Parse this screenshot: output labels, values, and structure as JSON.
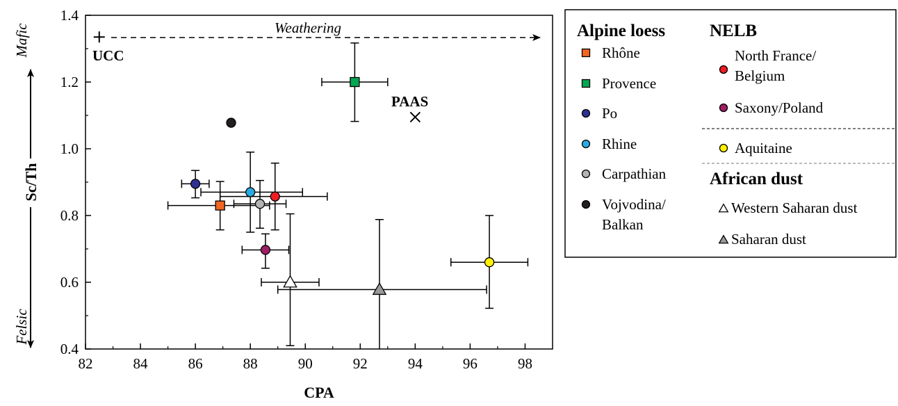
{
  "chart_data": {
    "type": "scatter",
    "xlabel": "CPA",
    "ylabel": "Sc/Th",
    "xlim": [
      82,
      99
    ],
    "ylim": [
      0.4,
      1.4
    ],
    "x_ticks": [
      "82",
      "84",
      "86",
      "88",
      "90",
      "92",
      "94",
      "96",
      "98"
    ],
    "y_ticks": [
      "0.4",
      "0.6",
      "0.8",
      "1.0",
      "1.2",
      "1.4"
    ],
    "y_end_labels": {
      "top": "Mafic",
      "bottom": "Felsic"
    },
    "grid": false,
    "legend_position": "right",
    "series": [
      {
        "name": "Rhône",
        "group": "Alpine loess",
        "marker": "square",
        "color": "#f26522",
        "x": 86.9,
        "y": 0.83,
        "xerr": [
          85.0,
          88.7
        ],
        "yerr": [
          0.757,
          0.902
        ]
      },
      {
        "name": "Provence",
        "group": "Alpine loess",
        "marker": "square",
        "color": "#00a651",
        "x": 91.8,
        "y": 1.2,
        "xerr": [
          90.6,
          93.0
        ],
        "yerr": [
          1.082,
          1.317
        ]
      },
      {
        "name": "Po",
        "group": "Alpine loess",
        "marker": "circle",
        "color": "#2e3192",
        "x": 86.0,
        "y": 0.895,
        "xerr": [
          85.5,
          86.5
        ],
        "yerr": [
          0.853,
          0.935
        ]
      },
      {
        "name": "Rhine",
        "group": "Alpine loess",
        "marker": "circle",
        "color": "#29abe2",
        "x": 88.0,
        "y": 0.87,
        "xerr": [
          86.2,
          89.9
        ],
        "yerr": [
          0.75,
          0.99
        ]
      },
      {
        "name": "Carpathian",
        "group": "Alpine loess",
        "marker": "circle",
        "color": "#b3b3b3",
        "x": 88.35,
        "y": 0.835,
        "xerr": [
          87.4,
          89.3
        ],
        "yerr": [
          0.762,
          0.905
        ]
      },
      {
        "name": "Vojvodina/ Balkan",
        "group": "Alpine loess",
        "marker": "circle",
        "color": "#231f20",
        "x": 87.3,
        "y": 1.078
      },
      {
        "name": "North France/ Belgium",
        "group": "NELB",
        "marker": "circle",
        "color": "#ed1c24",
        "x": 88.9,
        "y": 0.857,
        "xerr": [
          86.9,
          90.8
        ],
        "yerr": [
          0.757,
          0.957
        ]
      },
      {
        "name": "Saxony/Poland",
        "group": "NELB",
        "marker": "circle",
        "color": "#9e1f63",
        "x": 88.55,
        "y": 0.697,
        "xerr": [
          87.7,
          89.4
        ],
        "yerr": [
          0.642,
          0.745
        ]
      },
      {
        "name": "Aquitaine",
        "group": "",
        "marker": "circle",
        "color": "#fff200",
        "x": 96.7,
        "y": 0.66,
        "xerr": [
          95.3,
          98.1
        ],
        "yerr": [
          0.522,
          0.8
        ]
      },
      {
        "name": "Western Saharan dust",
        "group": "African dust",
        "marker": "triangle",
        "color": "#ffffff",
        "x": 89.45,
        "y": 0.6,
        "xerr": [
          88.4,
          90.5
        ],
        "yerr": [
          0.41,
          0.805
        ]
      },
      {
        "name": "Saharan dust",
        "group": "African dust",
        "marker": "triangle",
        "color": "#999999",
        "x": 92.7,
        "y": 0.578,
        "xerr": [
          89.0,
          96.6
        ],
        "yerr": [
          0.4,
          0.788
        ]
      }
    ],
    "reference_points": [
      {
        "name": "UCC",
        "marker": "plus",
        "x": 82.5,
        "y": 1.335
      },
      {
        "name": "PAAS",
        "marker": "cross",
        "x": 94.0,
        "y": 1.095
      }
    ],
    "annotations": {
      "weathering": "Weathering"
    },
    "legend": {
      "headers": {
        "alpine": "Alpine loess",
        "nelb": "NELB",
        "african": "African dust"
      },
      "alpine_items": [
        {
          "label": "Rhône",
          "marker": "square",
          "color": "#f26522"
        },
        {
          "label": "Provence",
          "marker": "square",
          "color": "#00a651"
        },
        {
          "label": "Po",
          "marker": "circle",
          "color": "#2e3192"
        },
        {
          "label": "Rhine",
          "marker": "circle",
          "color": "#29abe2"
        },
        {
          "label": "Carpathian",
          "marker": "circle",
          "color": "#b3b3b3"
        },
        {
          "label": "Vojvodina/",
          "label2": "Balkan",
          "marker": "circle",
          "color": "#231f20"
        }
      ],
      "nelb_items": [
        {
          "label": "North France/",
          "label2": "Belgium",
          "marker": "circle",
          "color": "#ed1c24"
        },
        {
          "label": "Saxony/Poland",
          "marker": "circle",
          "color": "#9e1f63"
        }
      ],
      "aquitaine_item": {
        "label": "Aquitaine",
        "marker": "circle",
        "color": "#fff200"
      },
      "african_items": [
        {
          "label": "Western Saharan dust",
          "marker": "triangle",
          "color": "#ffffff"
        },
        {
          "label": "Saharan dust",
          "marker": "triangle",
          "color": "#999999"
        }
      ]
    }
  }
}
